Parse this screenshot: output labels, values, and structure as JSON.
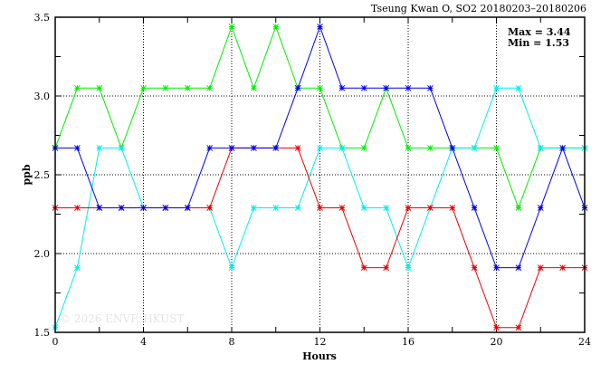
{
  "chart_data": {
    "type": "line",
    "title": "Tseung Kwan O, SO2 20180203–20180206",
    "xlabel": "Hours",
    "ylabel": "ppb",
    "xlim": [
      0,
      24
    ],
    "ylim": [
      1.5,
      3.5
    ],
    "xticks": [
      0,
      4,
      8,
      12,
      16,
      20,
      24
    ],
    "yticks": [
      "1.5",
      "2.0",
      "2.5",
      "3.0",
      "3.5"
    ],
    "grid": true,
    "annotations": {
      "max": "Max = 3.44",
      "min": "Min = 1.53"
    },
    "watermark": "© 2026  ENVF, HKUST",
    "x": [
      0,
      1,
      2,
      3,
      4,
      5,
      6,
      7,
      8,
      9,
      10,
      11,
      12,
      13,
      14,
      15,
      16,
      17,
      18,
      19,
      20,
      21,
      22,
      23,
      24
    ],
    "series": [
      {
        "name": "green",
        "color": "#00ee00",
        "values": [
          2.67,
          3.05,
          3.05,
          2.67,
          3.05,
          3.05,
          3.05,
          3.05,
          3.44,
          3.05,
          3.44,
          3.05,
          3.05,
          2.67,
          2.67,
          3.05,
          2.67,
          2.67,
          2.67,
          2.67,
          2.67,
          2.29,
          2.67,
          2.67,
          2.67
        ]
      },
      {
        "name": "cyan",
        "color": "#00eeee",
        "values": [
          1.53,
          1.91,
          2.67,
          2.67,
          2.29,
          2.29,
          2.29,
          2.29,
          1.91,
          2.29,
          2.29,
          2.29,
          2.67,
          2.67,
          2.29,
          2.29,
          1.91,
          2.29,
          2.67,
          2.67,
          3.05,
          3.05,
          2.67,
          2.67,
          2.67
        ]
      },
      {
        "name": "red",
        "color": "#ee0000",
        "values": [
          2.29,
          2.29,
          2.29,
          2.29,
          2.29,
          2.29,
          2.29,
          2.29,
          2.67,
          2.67,
          2.67,
          2.67,
          2.29,
          2.29,
          1.91,
          1.91,
          2.29,
          2.29,
          2.29,
          1.91,
          1.53,
          1.53,
          1.91,
          1.91,
          1.91
        ]
      },
      {
        "name": "blue",
        "color": "#0000ee",
        "values": [
          2.67,
          2.67,
          2.29,
          2.29,
          2.29,
          2.29,
          2.29,
          2.67,
          2.67,
          2.67,
          2.67,
          3.05,
          3.44,
          3.05,
          3.05,
          3.05,
          3.05,
          3.05,
          2.67,
          2.29,
          1.91,
          1.91,
          2.29,
          2.67,
          2.29
        ]
      }
    ]
  }
}
